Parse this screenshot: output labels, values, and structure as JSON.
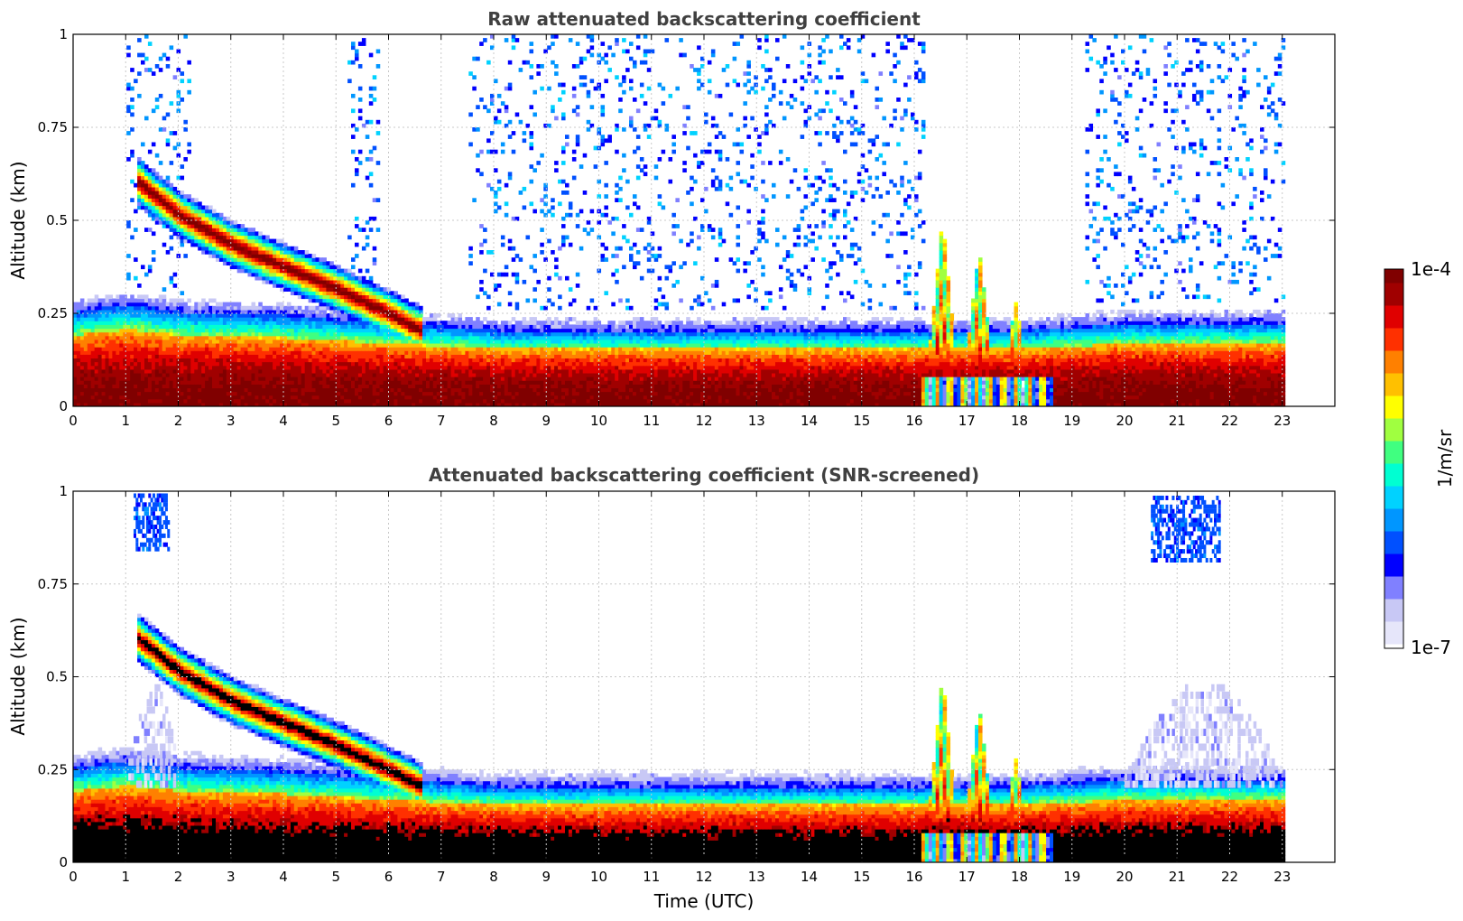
{
  "colors": {
    "colormap": [
      "#ffffff",
      "#e6e6fa",
      "#c8c8f5",
      "#8080ff",
      "#0000ff",
      "#0050ff",
      "#0096ff",
      "#00d2ff",
      "#00ffd2",
      "#40ff80",
      "#a0ff40",
      "#ffff00",
      "#ffc000",
      "#ff8000",
      "#ff3000",
      "#e00000",
      "#a00000",
      "#800000"
    ],
    "saturation_screened": "#000000",
    "gridline": "#c8c8c8"
  },
  "chart_data": [
    {
      "type": "heatmap",
      "title": "Raw attenuated backscattering coefficient",
      "xlabel": "",
      "ylabel": "Altitude (km)",
      "xlim": [
        0,
        24
      ],
      "ylim": [
        0,
        1
      ],
      "xticks": [
        "0",
        "1",
        "2",
        "3",
        "4",
        "5",
        "6",
        "7",
        "8",
        "9",
        "10",
        "11",
        "12",
        "13",
        "14",
        "15",
        "16",
        "17",
        "18",
        "19",
        "20",
        "21",
        "22",
        "23"
      ],
      "yticks": [
        "0",
        "0.25",
        "0.5",
        "0.75",
        "1"
      ],
      "grid": true,
      "data_extent_hours": [
        0,
        23.05
      ],
      "features": {
        "surface_layer_top_km": [
          [
            0,
            0.25
          ],
          [
            1,
            0.27
          ],
          [
            2,
            0.25
          ],
          [
            4,
            0.24
          ],
          [
            6,
            0.22
          ],
          [
            8,
            0.2
          ],
          [
            12,
            0.2
          ],
          [
            16,
            0.2
          ],
          [
            18,
            0.2
          ],
          [
            20,
            0.22
          ],
          [
            22,
            0.22
          ],
          [
            23,
            0.22
          ]
        ],
        "elevated_plume_center_km": [
          [
            1.2,
            0.6
          ],
          [
            2,
            0.51
          ],
          [
            3,
            0.43
          ],
          [
            4,
            0.37
          ],
          [
            5,
            0.31
          ],
          [
            5.9,
            0.25
          ],
          [
            6.6,
            0.2
          ]
        ],
        "convective_peaks": [
          {
            "time": 16.5,
            "alt_km": 0.5
          },
          {
            "time": 17.2,
            "alt_km": 0.42
          },
          {
            "time": 17.9,
            "alt_km": 0.28
          }
        ],
        "high_altitude_noise_hours": [
          [
            1,
            2.2
          ],
          [
            5.2,
            5.8
          ],
          [
            7.5,
            16.2
          ],
          [
            19.2,
            23
          ]
        ]
      },
      "colorbar_label": "1/m/sr",
      "colorbar_range": [
        "1e-7",
        "1e-4"
      ],
      "log_scale": true
    },
    {
      "type": "heatmap",
      "title": "Attenuated backscattering coefficient (SNR-screened)",
      "xlabel": "Time (UTC)",
      "ylabel": "Altitude (km)",
      "xlim": [
        0,
        24
      ],
      "ylim": [
        0,
        1
      ],
      "xticks": [
        "0",
        "1",
        "2",
        "3",
        "4",
        "5",
        "6",
        "7",
        "8",
        "9",
        "10",
        "11",
        "12",
        "13",
        "14",
        "15",
        "16",
        "17",
        "18",
        "19",
        "20",
        "21",
        "22",
        "23"
      ],
      "yticks": [
        "0",
        "0.25",
        "0.5",
        "0.75",
        "1"
      ],
      "grid": true,
      "data_extent_hours": [
        0,
        23.05
      ],
      "features": {
        "high_cloud_patches": [
          {
            "time_range": [
              1.15,
              1.8
            ],
            "alt_range_km": [
              0.85,
              1
            ]
          },
          {
            "time_range": [
              20.5,
              21.8
            ],
            "alt_range_km": [
              0.82,
              1
            ]
          }
        ],
        "diffuse_haze_hours": [
          [
            20,
            23
          ],
          [
            1,
            2
          ]
        ]
      },
      "colorbar_label": "1/m/sr",
      "colorbar_range": [
        "1e-7",
        "1e-4"
      ],
      "log_scale": true
    }
  ]
}
